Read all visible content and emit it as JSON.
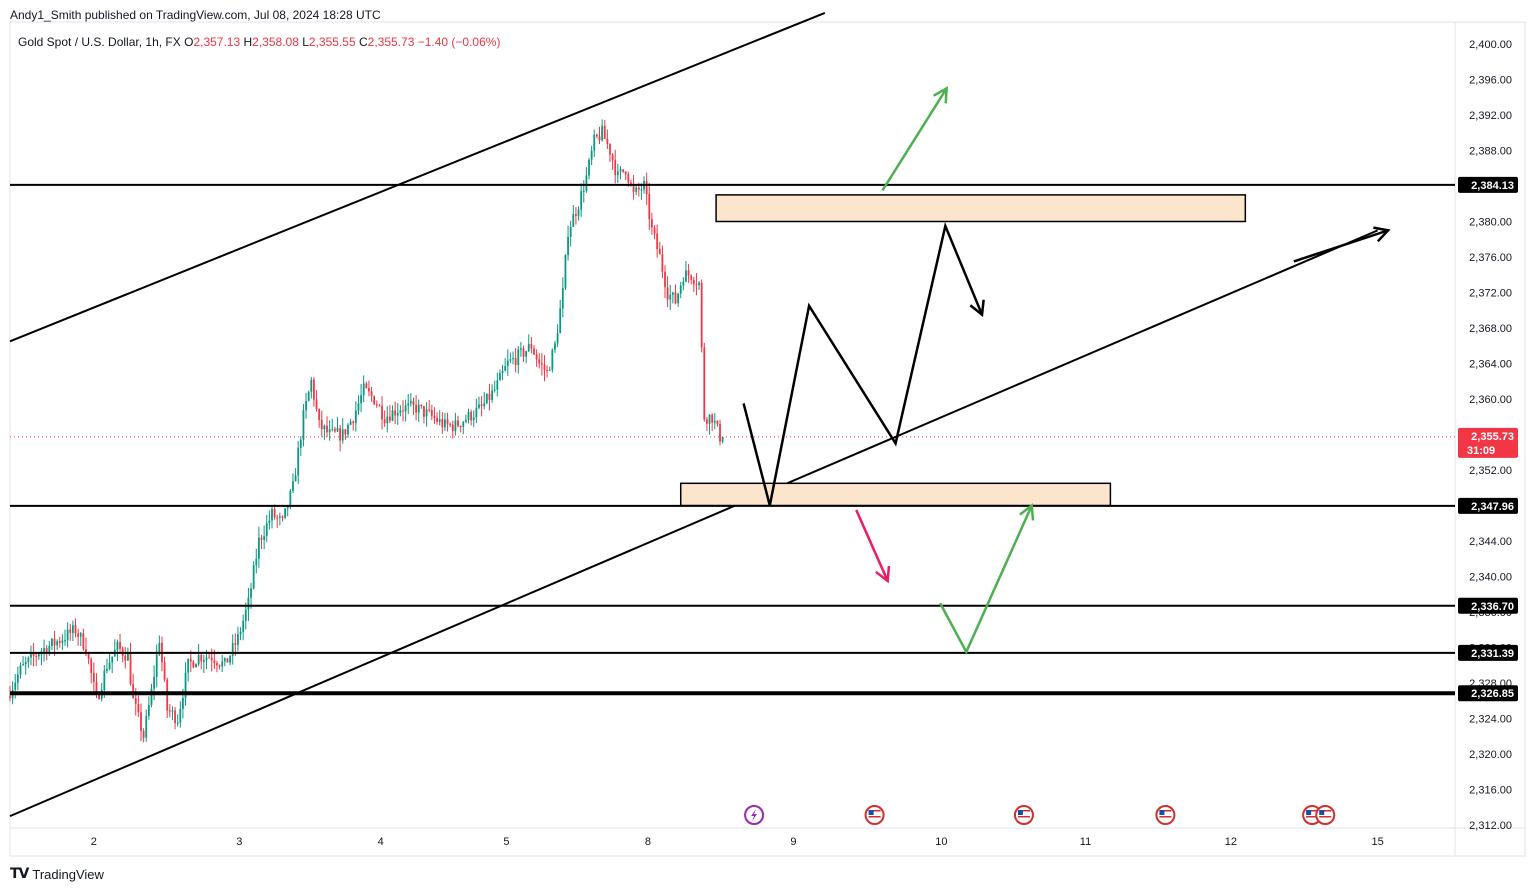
{
  "publisher_text": "Andy1_Smith published on TradingView.com, Jul 08, 2024 18:28 UTC",
  "legend": {
    "symbol": "Gold Spot / U.S. Dollar, 1h, FX",
    "open_label": "O",
    "open": "2,357.13",
    "high_label": "H",
    "high": "2,358.08",
    "low_label": "L",
    "low": "2,355.55",
    "close_label": "C",
    "close": "2,355.73",
    "change": "−1.40 (−0.06%)"
  },
  "footer": {
    "logo_icon": "tradingview-logo-icon",
    "brand": "TradingView"
  },
  "colors": {
    "up": "#089981",
    "down": "#f23645",
    "drawing": "#000000",
    "green_arrow": "#4caf50",
    "red_arrow": "#e91e63",
    "zone_fill": "#fce5cd",
    "current_price": "#f23645"
  },
  "chart_data": {
    "type": "candlestick",
    "symbol": "Gold Spot / U.S. Dollar",
    "timeframe": "1h",
    "ylim": [
      2310,
      2402
    ],
    "y_ticks": [
      "2,400.00",
      "2,396.00",
      "2,392.00",
      "2,388.00",
      "2,384.00",
      "2,380.00",
      "2,376.00",
      "2,372.00",
      "2,368.00",
      "2,364.00",
      "2,360.00",
      "2,356.00",
      "2,352.00",
      "2,348.00",
      "2,344.00",
      "2,340.00",
      "2,336.00",
      "2,332.00",
      "2,328.00",
      "2,324.00",
      "2,320.00",
      "2,316.00",
      "2,312.00"
    ],
    "y_tick_values": [
      2400,
      2396,
      2392,
      2388,
      2384,
      2380,
      2376,
      2372,
      2368,
      2364,
      2360,
      2356,
      2352,
      2348,
      2344,
      2340,
      2336,
      2332,
      2328,
      2324,
      2320,
      2316,
      2312
    ],
    "x_ticks": [
      {
        "label": "2",
        "t": 32
      },
      {
        "label": "3",
        "t": 87.5
      },
      {
        "label": "4",
        "t": 141.5
      },
      {
        "label": "5",
        "t": 189.5
      },
      {
        "label": "8",
        "t": 243.5
      },
      {
        "label": "9",
        "t": 299
      },
      {
        "label": "10",
        "t": 355.5
      },
      {
        "label": "11",
        "t": 410.5
      },
      {
        "label": "12",
        "t": 466
      },
      {
        "label": "15",
        "t": 522
      }
    ],
    "candle_anchors": [
      {
        "t": 0,
        "p": 2326.5
      },
      {
        "t": 5,
        "p": 2329.5
      },
      {
        "t": 12,
        "p": 2331.5
      },
      {
        "t": 18,
        "p": 2332.5
      },
      {
        "t": 26,
        "p": 2334
      },
      {
        "t": 30,
        "p": 2332
      },
      {
        "t": 34,
        "p": 2326
      },
      {
        "t": 38,
        "p": 2330
      },
      {
        "t": 42,
        "p": 2332
      },
      {
        "t": 46,
        "p": 2331
      },
      {
        "t": 48,
        "p": 2326
      },
      {
        "t": 52,
        "p": 2322
      },
      {
        "t": 55,
        "p": 2327
      },
      {
        "t": 58,
        "p": 2333
      },
      {
        "t": 61,
        "p": 2325
      },
      {
        "t": 65,
        "p": 2324
      },
      {
        "t": 69,
        "p": 2330
      },
      {
        "t": 73,
        "p": 2331
      },
      {
        "t": 78,
        "p": 2331
      },
      {
        "t": 83,
        "p": 2330
      },
      {
        "t": 88,
        "p": 2333
      },
      {
        "t": 92,
        "p": 2337
      },
      {
        "t": 96,
        "p": 2344
      },
      {
        "t": 101,
        "p": 2347
      },
      {
        "t": 105,
        "p": 2346
      },
      {
        "t": 109,
        "p": 2350
      },
      {
        "t": 113,
        "p": 2358
      },
      {
        "t": 116,
        "p": 2362
      },
      {
        "t": 119,
        "p": 2357
      },
      {
        "t": 123,
        "p": 2356
      },
      {
        "t": 128,
        "p": 2356
      },
      {
        "t": 132,
        "p": 2358
      },
      {
        "t": 136,
        "p": 2361
      },
      {
        "t": 140,
        "p": 2360
      },
      {
        "t": 144,
        "p": 2358
      },
      {
        "t": 150,
        "p": 2359
      },
      {
        "t": 156,
        "p": 2359
      },
      {
        "t": 162,
        "p": 2358
      },
      {
        "t": 167,
        "p": 2357
      },
      {
        "t": 171,
        "p": 2357
      },
      {
        "t": 176,
        "p": 2358
      },
      {
        "t": 181,
        "p": 2359
      },
      {
        "t": 186,
        "p": 2361
      },
      {
        "t": 191,
        "p": 2364
      },
      {
        "t": 196,
        "p": 2365
      },
      {
        "t": 200,
        "p": 2366
      },
      {
        "t": 203,
        "p": 2364
      },
      {
        "t": 206,
        "p": 2363
      },
      {
        "t": 209,
        "p": 2366
      },
      {
        "t": 212,
        "p": 2372
      },
      {
        "t": 214,
        "p": 2379
      },
      {
        "t": 218,
        "p": 2382
      },
      {
        "t": 221,
        "p": 2385
      },
      {
        "t": 224,
        "p": 2389
      },
      {
        "t": 227,
        "p": 2390
      },
      {
        "t": 230,
        "p": 2388
      },
      {
        "t": 233,
        "p": 2385
      },
      {
        "t": 236,
        "p": 2386
      },
      {
        "t": 239,
        "p": 2383
      },
      {
        "t": 243,
        "p": 2384
      },
      {
        "t": 246,
        "p": 2379
      },
      {
        "t": 249,
        "p": 2376
      },
      {
        "t": 252,
        "p": 2372
      },
      {
        "t": 255,
        "p": 2371
      },
      {
        "t": 258,
        "p": 2374
      },
      {
        "t": 261,
        "p": 2374
      },
      {
        "t": 264,
        "p": 2373
      },
      {
        "t": 266,
        "p": 2358
      },
      {
        "t": 269,
        "p": 2358
      },
      {
        "t": 272,
        "p": 2355.73
      }
    ],
    "candle_count": 273,
    "current_price": {
      "value": "2,355.73",
      "countdown": "31:09"
    },
    "horizontal_levels": [
      {
        "value": 2384.13,
        "label": "2,384.13"
      },
      {
        "value": 2347.96,
        "label": "2,347.96"
      },
      {
        "value": 2336.7,
        "label": "2,336.70"
      },
      {
        "value": 2331.39,
        "label": "2,331.39"
      },
      {
        "value": 2326.85,
        "label": "2,326.85"
      }
    ],
    "trendlines": [
      {
        "name": "upper-channel",
        "from": {
          "t": 0,
          "p": 2366.5
        },
        "to": {
          "t": 311,
          "p": 2403.5
        }
      },
      {
        "name": "lower-channel",
        "from": {
          "t": 0,
          "p": 2313
        },
        "to": {
          "t": 522,
          "p": 2379
        }
      }
    ],
    "zones": [
      {
        "name": "resistance-zone",
        "t1": 269.5,
        "t2": 471.5,
        "p_top": 2383,
        "p_bottom": 2380
      },
      {
        "name": "support-zone",
        "t1": 256,
        "t2": 420,
        "p_top": 2350.5,
        "p_bottom": 2348
      }
    ],
    "projection_paths": [
      {
        "name": "main-path",
        "color": "black",
        "points": [
          {
            "t": 280,
            "p": 2359.5
          },
          {
            "t": 290,
            "p": 2348
          },
          {
            "t": 305,
            "p": 2370.5
          },
          {
            "t": 338,
            "p": 2355
          },
          {
            "t": 357,
            "p": 2379.5
          },
          {
            "t": 371,
            "p": 2369.5
          }
        ]
      },
      {
        "name": "bullish-path",
        "color": "green",
        "points": [
          {
            "t": 333,
            "p": 2383.5
          },
          {
            "t": 357.5,
            "p": 2395
          }
        ]
      },
      {
        "name": "bearish-path",
        "color": "red",
        "points": [
          {
            "t": 323,
            "p": 2347.5
          },
          {
            "t": 335,
            "p": 2339.5
          }
        ]
      },
      {
        "name": "dip-and-recover-path",
        "color": "green",
        "points": [
          {
            "t": 355,
            "p": 2337
          },
          {
            "t": 365,
            "p": 2331.5
          },
          {
            "t": 390,
            "p": 2348
          }
        ]
      },
      {
        "name": "trend-arrow",
        "color": "black",
        "points": [
          {
            "t": 490,
            "p": 2375.5
          },
          {
            "t": 526,
            "p": 2379
          }
        ]
      }
    ],
    "events": [
      {
        "name": "lightning-event-icon",
        "t": 284
      },
      {
        "name": "us-flag-event-icon",
        "t": 330
      },
      {
        "name": "us-flag-event-icon",
        "t": 387
      },
      {
        "name": "us-flag-event-icon",
        "t": 441
      },
      {
        "name": "us-flag-event-icon",
        "t": 497
      },
      {
        "name": "us-flag-event-icon",
        "t": 502
      }
    ]
  }
}
